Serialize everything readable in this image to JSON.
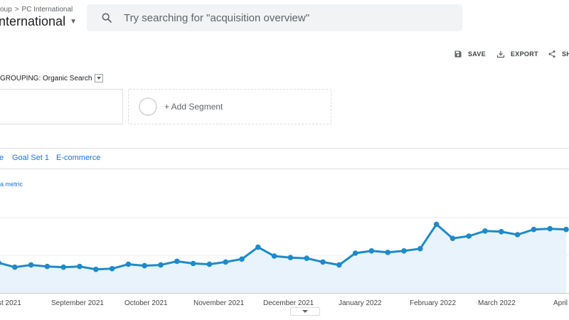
{
  "header": {
    "breadcrumb": {
      "parent": "oup",
      "separator": ">",
      "current": "PC International"
    },
    "property_name": "nternational",
    "search": {
      "placeholder": "Try searching for \"acquisition overview\""
    }
  },
  "toolbar": {
    "save_label": "SAVE",
    "export_label": "EXPORT",
    "share_label": "SH"
  },
  "segments": {
    "grouping_label": "GROUPING: Organic Search",
    "add_segment_label": "+ Add Segment"
  },
  "tabs": [
    {
      "label": "e"
    },
    {
      "label": "Goal Set 1"
    },
    {
      "label": "E-commerce"
    }
  ],
  "metric_link": "a metric",
  "chart_data": {
    "type": "area",
    "title": "",
    "xlabel": "",
    "ylabel": "",
    "x_tick_labels": [
      "st 2021",
      "September 2021",
      "October 2021",
      "November 2021",
      "December 2021",
      "January 2022",
      "February 2022",
      "March 2022",
      "April 20"
    ],
    "grid": true,
    "series_color": "#1f8ac9",
    "fill_color": "#e8f3fb",
    "series": [
      {
        "values": [
          38,
          32,
          35,
          33,
          32,
          33,
          29,
          30,
          36,
          34,
          35,
          40,
          37,
          36,
          39,
          43,
          59,
          47,
          45,
          44,
          39,
          35,
          51,
          54,
          52,
          54,
          57,
          90,
          71,
          74,
          81,
          80,
          76,
          83,
          84,
          83
        ]
      }
    ]
  }
}
